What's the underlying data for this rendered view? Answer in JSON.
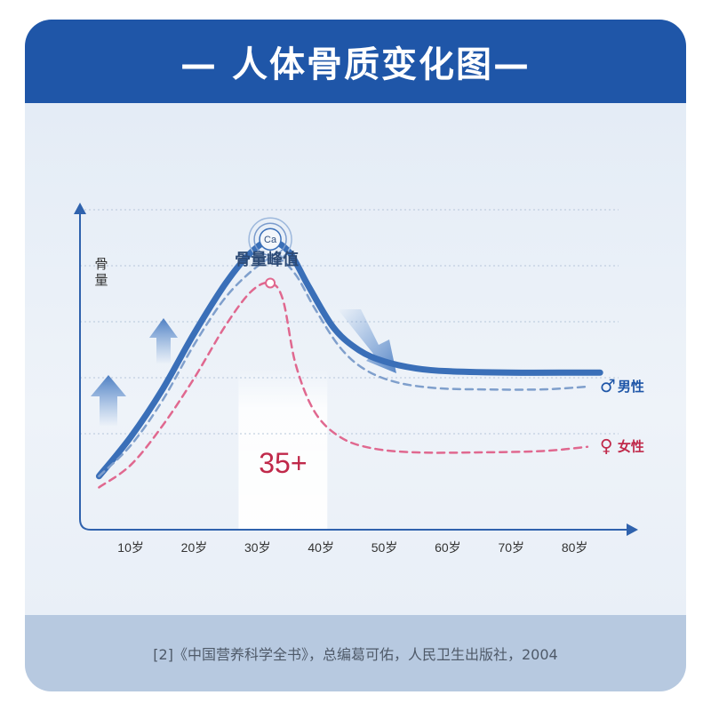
{
  "header": {
    "title": "— 人体骨质变化图—"
  },
  "footer": {
    "citation": "[2]《中国营养科学全书》，总编葛可佑，人民卫生出版社，2004"
  },
  "colors": {
    "header_bg": "#1f56a8",
    "male": "#3a6fb8",
    "male_dashed": "#7f9fcc",
    "female": "#e0688f",
    "highlight_text": "#c0294a"
  },
  "chart_data": {
    "type": "line",
    "title": "",
    "xlabel": "",
    "ylabel": "骨量",
    "categories": [
      "10岁",
      "20岁",
      "30岁",
      "40岁",
      "50岁",
      "60岁",
      "70岁",
      "80岁"
    ],
    "x_ticks": [
      10,
      20,
      30,
      40,
      50,
      60,
      70,
      80
    ],
    "xlim": [
      2,
      90
    ],
    "ylim": [
      0,
      10
    ],
    "y_ticks_labeled": false,
    "grid": "horizontal dotted",
    "peak_label": "骨量峰值",
    "peak_marker": "Ca",
    "peak_age": 32,
    "highlight_band": {
      "from_age": 27,
      "to_age": 41,
      "label": "35+"
    },
    "series": [
      {
        "name": "",
        "style": "solid",
        "points": [
          [
            5,
            0.8
          ],
          [
            10,
            2.2
          ],
          [
            15,
            3.9
          ],
          [
            20,
            5.9
          ],
          [
            25,
            7.7
          ],
          [
            29,
            8.8
          ],
          [
            32,
            9.2
          ],
          [
            35,
            8.8
          ],
          [
            38,
            7.6
          ],
          [
            42,
            6.1
          ],
          [
            46,
            5.3
          ],
          [
            50,
            4.9
          ],
          [
            55,
            4.65
          ],
          [
            60,
            4.55
          ],
          [
            70,
            4.5
          ],
          [
            80,
            4.5
          ],
          [
            84,
            4.5
          ]
        ]
      },
      {
        "name": "男性",
        "style": "dashed",
        "symbol": "♂",
        "points": [
          [
            5,
            0.8
          ],
          [
            10,
            1.9
          ],
          [
            15,
            3.5
          ],
          [
            20,
            5.5
          ],
          [
            25,
            7.2
          ],
          [
            30,
            8.3
          ],
          [
            33,
            8.6
          ],
          [
            36,
            8.0
          ],
          [
            39,
            6.8
          ],
          [
            43,
            5.4
          ],
          [
            47,
            4.6
          ],
          [
            52,
            4.15
          ],
          [
            58,
            3.95
          ],
          [
            65,
            3.9
          ],
          [
            75,
            3.9
          ],
          [
            82,
            4.0
          ]
        ]
      },
      {
        "name": "女性",
        "style": "dashed",
        "symbol": "♀",
        "points": [
          [
            5,
            0.4
          ],
          [
            10,
            1.2
          ],
          [
            15,
            2.6
          ],
          [
            20,
            4.3
          ],
          [
            25,
            6.2
          ],
          [
            29,
            7.4
          ],
          [
            32,
            7.7
          ],
          [
            34,
            7.1
          ],
          [
            36,
            4.8
          ],
          [
            39,
            3.1
          ],
          [
            43,
            2.2
          ],
          [
            48,
            1.8
          ],
          [
            55,
            1.65
          ],
          [
            65,
            1.65
          ],
          [
            75,
            1.7
          ],
          [
            82,
            1.85
          ]
        ]
      }
    ]
  }
}
